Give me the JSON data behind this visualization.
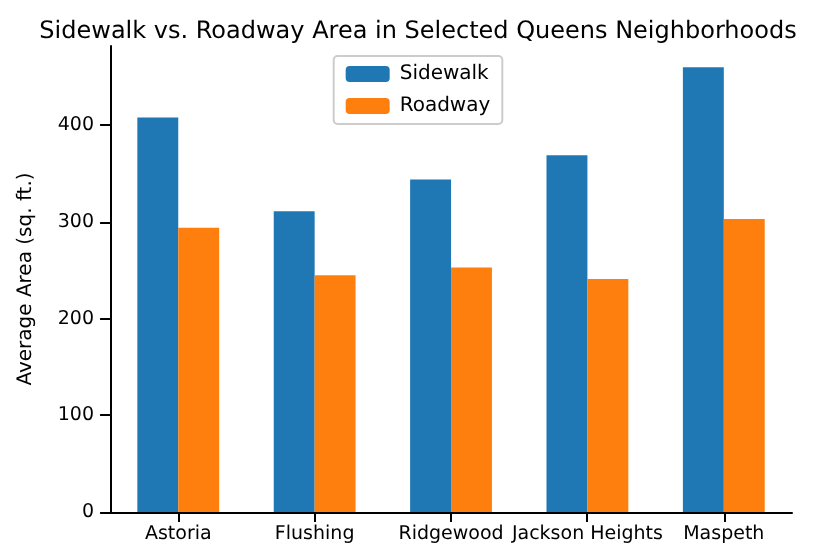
{
  "chart_data": {
    "type": "bar",
    "title": "Sidewalk vs. Roadway Area in Selected Queens Neighborhoods",
    "ylabel": "Average Area (sq. ft.)",
    "categories": [
      "Astoria",
      "Flushing",
      "Ridgewood",
      "Jackson Heights",
      "Maspeth"
    ],
    "series": [
      {
        "name": "Sidewalk",
        "color": "#1f77b4",
        "values": [
          408,
          311,
          344,
          369,
          460
        ]
      },
      {
        "name": "Roadway",
        "color": "#ff7f0e",
        "values": [
          294,
          245,
          253,
          241,
          303
        ]
      }
    ],
    "ylim": [
      0,
      482
    ],
    "yticks": [
      0,
      100,
      200,
      300,
      400
    ],
    "grid": false,
    "legend": "top"
  }
}
